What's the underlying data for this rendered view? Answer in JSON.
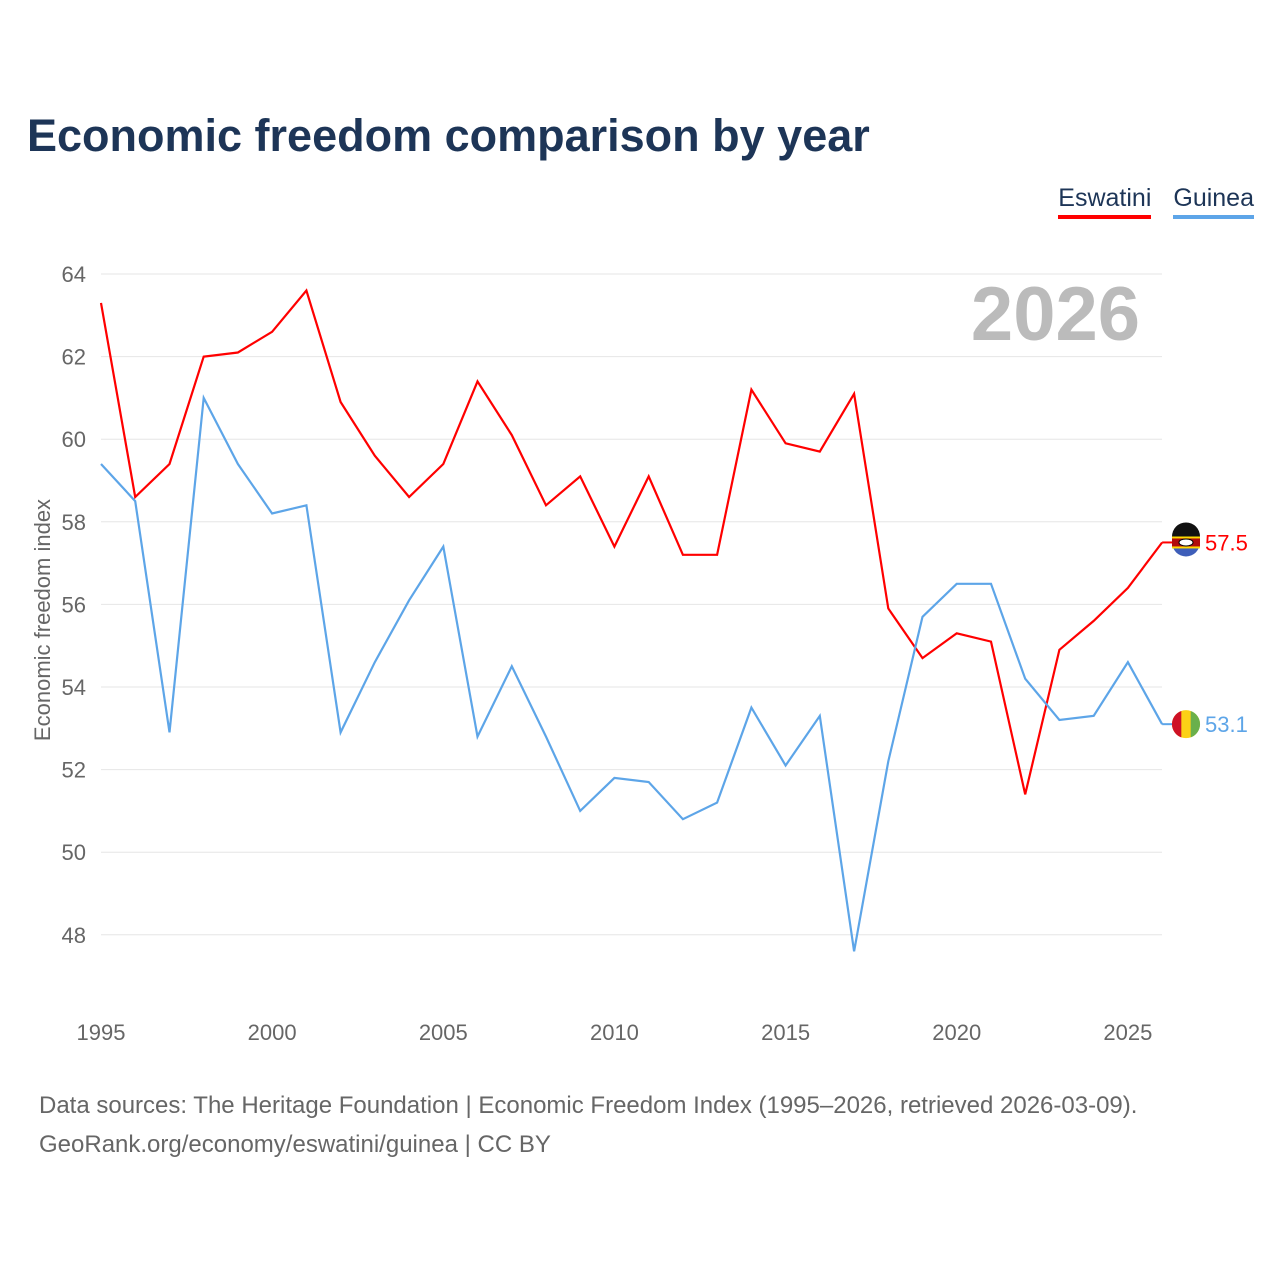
{
  "chart_data": {
    "type": "line",
    "title": "Economic freedom comparison by year",
    "ylabel": "Economic freedom index",
    "xlabel": "",
    "ylim": [
      46.2,
      64
    ],
    "yticks": [
      48,
      50,
      52,
      54,
      56,
      58,
      60,
      62,
      64
    ],
    "xticks": [
      1995,
      2000,
      2005,
      2010,
      2015,
      2020,
      2025
    ],
    "year_label": "2026",
    "grid": true,
    "legend": "top-right",
    "x": [
      1995,
      1996,
      1997,
      1998,
      1999,
      2000,
      2001,
      2002,
      2003,
      2004,
      2005,
      2006,
      2007,
      2008,
      2009,
      2010,
      2011,
      2012,
      2013,
      2014,
      2015,
      2016,
      2017,
      2018,
      2019,
      2020,
      2021,
      2022,
      2023,
      2024,
      2025,
      2026
    ],
    "series": [
      {
        "name": "Eswatini",
        "color": "#ff0000",
        "end_label": "57.5",
        "values": [
          63.3,
          58.6,
          59.4,
          62.0,
          62.1,
          62.6,
          63.6,
          60.9,
          59.6,
          58.6,
          59.4,
          61.4,
          60.1,
          58.4,
          59.1,
          57.4,
          59.1,
          57.2,
          57.2,
          61.2,
          59.9,
          59.7,
          61.1,
          55.9,
          54.7,
          55.3,
          55.1,
          51.4,
          54.9,
          55.6,
          56.4,
          57.5
        ]
      },
      {
        "name": "Guinea",
        "color": "#5da5e8",
        "end_label": "53.1",
        "values": [
          59.4,
          58.5,
          52.9,
          61.0,
          59.4,
          58.2,
          58.4,
          52.9,
          54.6,
          56.1,
          57.4,
          52.8,
          54.5,
          52.8,
          51.0,
          51.8,
          51.7,
          50.8,
          51.2,
          53.5,
          52.1,
          53.3,
          47.6,
          52.2,
          55.7,
          56.5,
          56.5,
          54.2,
          53.2,
          53.3,
          54.6,
          53.1
        ]
      }
    ]
  },
  "footer": {
    "line1": "Data sources: The Heritage Foundation | Economic Freedom Index (1995–2026, retrieved 2026-03-09).",
    "line2": "GeoRank.org/economy/eswatini/guinea | CC BY"
  }
}
